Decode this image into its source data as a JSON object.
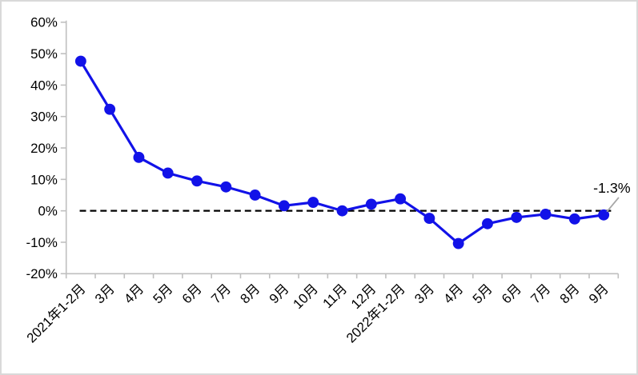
{
  "chart_data": {
    "type": "line",
    "title": "",
    "xlabel": "",
    "ylabel": "",
    "legend": "none",
    "grid": "off",
    "categories": [
      "2021年1-2月",
      "3月",
      "4月",
      "5月",
      "6月",
      "7月",
      "8月",
      "9月",
      "10月",
      "11月",
      "12月",
      "2022年1-2月",
      "3月",
      "4月",
      "5月",
      "6月",
      "7月",
      "8月",
      "9月"
    ],
    "values": [
      47.6,
      32.3,
      17.0,
      12.0,
      9.5,
      7.6,
      5.0,
      1.6,
      2.7,
      0.0,
      2.1,
      3.8,
      -2.4,
      -10.4,
      -4.1,
      -2.1,
      -1.1,
      -2.6,
      -1.3
    ],
    "ylim": [
      -20,
      60
    ],
    "y_ticks": [
      {
        "label": "60%",
        "value": 60
      },
      {
        "label": "50%",
        "value": 50
      },
      {
        "label": "40%",
        "value": 40
      },
      {
        "label": "30%",
        "value": 30
      },
      {
        "label": "20%",
        "value": 20
      },
      {
        "label": "10%",
        "value": 10
      },
      {
        "label": "0%",
        "value": 0
      },
      {
        "label": "-10%",
        "value": -10
      },
      {
        "label": "-20%",
        "value": -20
      }
    ],
    "zero_line": "dashed-black",
    "annotation": {
      "text": "-1.3%",
      "target_index": 18
    }
  },
  "colors": {
    "series": "#1212e8",
    "zero_line": "#000000",
    "axis": "#bfbfbf",
    "text": "#000000",
    "leader": "#a6a6a6",
    "frame_border": "#d9d9d9",
    "background": "#ffffff"
  }
}
